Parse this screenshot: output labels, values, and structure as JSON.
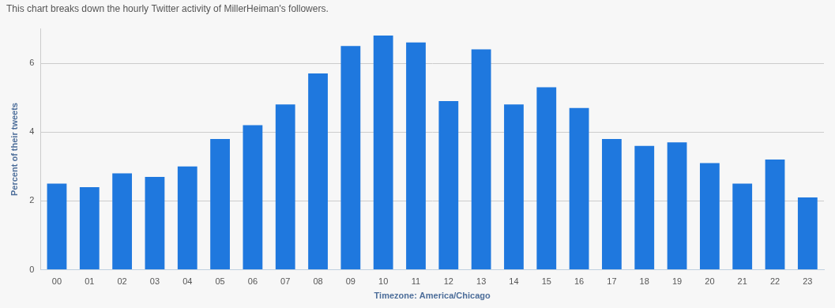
{
  "chart_data": {
    "type": "bar",
    "title": "This chart breaks down the hourly Twitter activity of MillerHeiman's followers.",
    "x_label": "Timezone: America/Chicago",
    "y_label": "Percent of their tweets",
    "categories": [
      "00",
      "01",
      "02",
      "03",
      "04",
      "05",
      "06",
      "07",
      "08",
      "09",
      "10",
      "11",
      "12",
      "13",
      "14",
      "15",
      "16",
      "17",
      "18",
      "19",
      "20",
      "21",
      "22",
      "23"
    ],
    "values": [
      2.5,
      2.4,
      2.8,
      2.7,
      3.0,
      3.8,
      4.2,
      4.8,
      5.7,
      6.5,
      6.8,
      6.6,
      4.9,
      6.4,
      4.8,
      5.3,
      4.7,
      3.8,
      3.6,
      3.7,
      3.1,
      2.5,
      3.2,
      2.1
    ],
    "color": "#1f78de",
    "ylim": [
      0,
      7
    ],
    "yticks": [
      0,
      2,
      4,
      6
    ],
    "grid": true
  }
}
